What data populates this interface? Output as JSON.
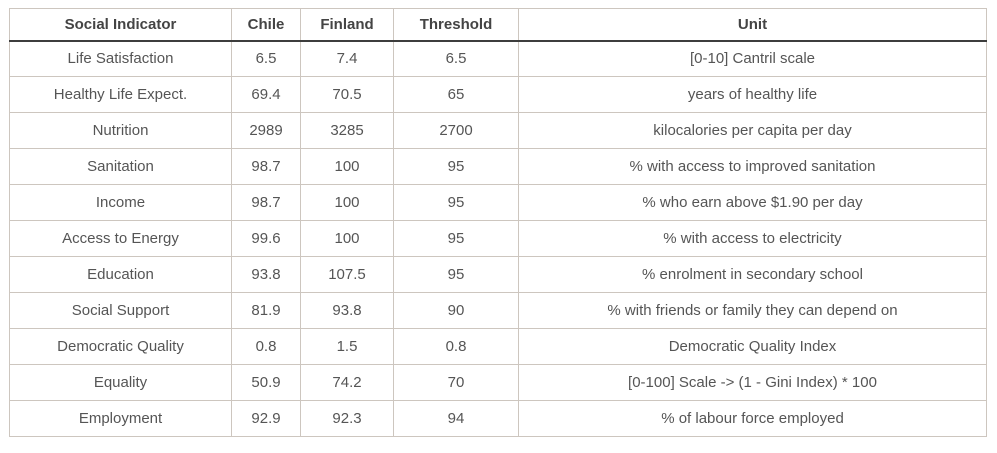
{
  "chart_data": {
    "type": "table",
    "columns": [
      "Social Indicator",
      "Chile",
      "Finland",
      "Threshold",
      "Unit"
    ],
    "rows": [
      [
        "Life Satisfaction",
        "6.5",
        "7.4",
        "6.5",
        "[0-10] Cantril scale"
      ],
      [
        "Healthy Life Expect.",
        "69.4",
        "70.5",
        "65",
        "years of healthy life"
      ],
      [
        "Nutrition",
        "2989",
        "3285",
        "2700",
        "kilocalories per capita per day"
      ],
      [
        "Sanitation",
        "98.7",
        "100",
        "95",
        "% with access to improved sanitation"
      ],
      [
        "Income",
        "98.7",
        "100",
        "95",
        "% who earn above $1.90 per day"
      ],
      [
        "Access to Energy",
        "99.6",
        "100",
        "95",
        "% with access to electricity"
      ],
      [
        "Education",
        "93.8",
        "107.5",
        "95",
        "% enrolment in secondary school"
      ],
      [
        "Social Support",
        "81.9",
        "93.8",
        "90",
        "% with friends or family they can depend on"
      ],
      [
        "Democratic Quality",
        "0.8",
        "1.5",
        "0.8",
        "Democratic Quality Index"
      ],
      [
        "Equality",
        "50.9",
        "74.2",
        "70",
        "[0-100] Scale -> (1 - Gini Index) * 100"
      ],
      [
        "Employment",
        "92.9",
        "92.3",
        "94",
        "% of labour force employed"
      ]
    ],
    "layout": {
      "grid": true,
      "text_align": "center",
      "header_bold": true
    },
    "colors": {
      "grid_border": "#cdc6bf",
      "header_rule": "#3d3d3d",
      "header_text": "#444444",
      "body_text": "#555555",
      "background": "#ffffff"
    }
  }
}
